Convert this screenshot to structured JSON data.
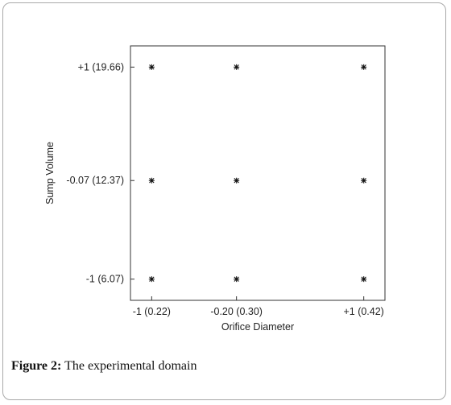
{
  "caption": {
    "label": "Figure 2:",
    "text": " The experimental domain"
  },
  "chart_data": {
    "type": "scatter",
    "title": "",
    "xlabel": "Orifice Diameter",
    "ylabel": "Sump Volume",
    "x_ticks": [
      {
        "value": -1,
        "label": "-1 (0.22)"
      },
      {
        "value": -0.2,
        "label": "-0.20 (0.30)"
      },
      {
        "value": 1,
        "label": "+1 (0.42)"
      }
    ],
    "y_ticks": [
      {
        "value": 1,
        "label": "+1 (19.66)"
      },
      {
        "value": -0.07,
        "label": "-0.07 (12.37)"
      },
      {
        "value": -1,
        "label": "-1 (6.07)"
      }
    ],
    "xlim": [
      -1.2,
      1.2
    ],
    "ylim": [
      -1.2,
      1.2
    ],
    "grid": false,
    "marker": "asterisk",
    "points": [
      {
        "x": -1,
        "y": 1
      },
      {
        "x": -0.2,
        "y": 1
      },
      {
        "x": 1,
        "y": 1
      },
      {
        "x": -1,
        "y": -0.07
      },
      {
        "x": -0.2,
        "y": -0.07
      },
      {
        "x": 1,
        "y": -0.07
      },
      {
        "x": -1,
        "y": -1
      },
      {
        "x": -0.2,
        "y": -1
      },
      {
        "x": 1,
        "y": -1
      }
    ]
  }
}
